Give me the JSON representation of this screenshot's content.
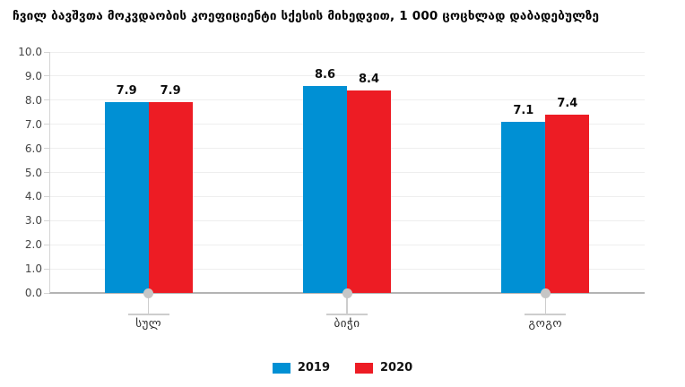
{
  "chart_data": {
    "type": "bar",
    "title": "ჩვილ ბავშვთა მოკვდაობის კოეფიციენტი სქესის მიხედვით, 1 000 ცოცხლად დაბადებულზე",
    "categories": [
      "სულ",
      "ბიჭი",
      "გოგო"
    ],
    "series": [
      {
        "name": "2019",
        "color": "#0090d4",
        "values": [
          7.9,
          8.6,
          7.1
        ]
      },
      {
        "name": "2020",
        "color": "#ed1c24",
        "values": [
          7.9,
          8.4,
          7.4
        ]
      }
    ],
    "xlabel": "",
    "ylabel": "",
    "ylim": [
      0,
      10
    ],
    "ytick_step": 1,
    "ytick_labels": [
      "0.0",
      "1.0",
      "2.0",
      "3.0",
      "4.0",
      "5.0",
      "6.0",
      "7.0",
      "8.0",
      "9.0",
      "10.0"
    ],
    "grid": true,
    "value_labels": true,
    "legend_position": "bottom"
  }
}
